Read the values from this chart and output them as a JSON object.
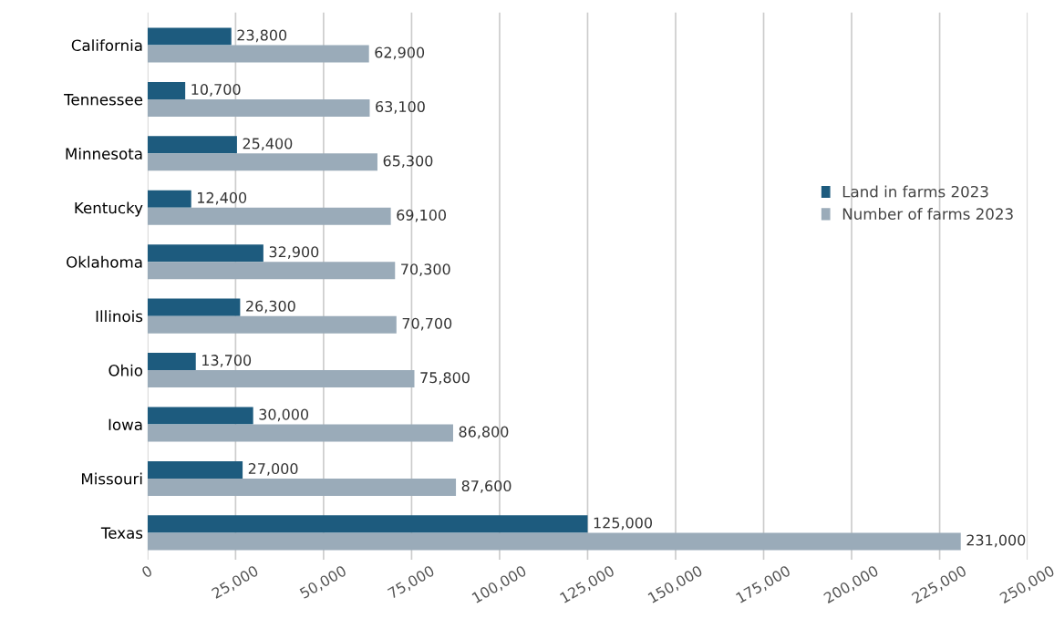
{
  "chart_data": {
    "type": "bar",
    "orientation": "horizontal",
    "categories": [
      "California",
      "Tennessee",
      "Minnesota",
      "Kentucky",
      "Oklahoma",
      "Illinois",
      "Ohio",
      "Iowa",
      "Missouri",
      "Texas"
    ],
    "series": [
      {
        "name": "Land in farms 2023",
        "color": "#1d5b7e",
        "values": [
          23800,
          10700,
          25400,
          12400,
          32900,
          26300,
          13700,
          30000,
          27000,
          125000
        ],
        "value_labels": [
          "23,800",
          "10,700",
          "25,400",
          "12,400",
          "32,900",
          "26,300",
          "13,700",
          "30,000",
          "27,000",
          "125,000"
        ]
      },
      {
        "name": "Number of farms 2023",
        "color": "#9aabb9",
        "values": [
          62900,
          63100,
          65300,
          69100,
          70300,
          70700,
          75800,
          86800,
          87600,
          231000
        ],
        "value_labels": [
          "62,900",
          "63,100",
          "65,300",
          "69,100",
          "70,300",
          "70,700",
          "75,800",
          "86,800",
          "87,600",
          "231,000"
        ]
      }
    ],
    "xlim": [
      0,
      250000
    ],
    "xticks": [
      0,
      {
        "value": 25000,
        "label": "25,000"
      },
      {
        "value": 50000,
        "label": "50,000"
      },
      {
        "value": 75000,
        "label": "75,000"
      },
      {
        "value": 100000,
        "label": "100,000"
      },
      {
        "value": 125000,
        "label": "125,000"
      },
      {
        "value": 150000,
        "label": "150,000"
      },
      {
        "value": 175000,
        "label": "175,000"
      },
      {
        "value": 200000,
        "label": "200,000"
      },
      {
        "value": 225000,
        "label": "225,000"
      },
      {
        "value": 250000,
        "label": "250,000"
      }
    ],
    "grid": "x",
    "legend": "right"
  }
}
